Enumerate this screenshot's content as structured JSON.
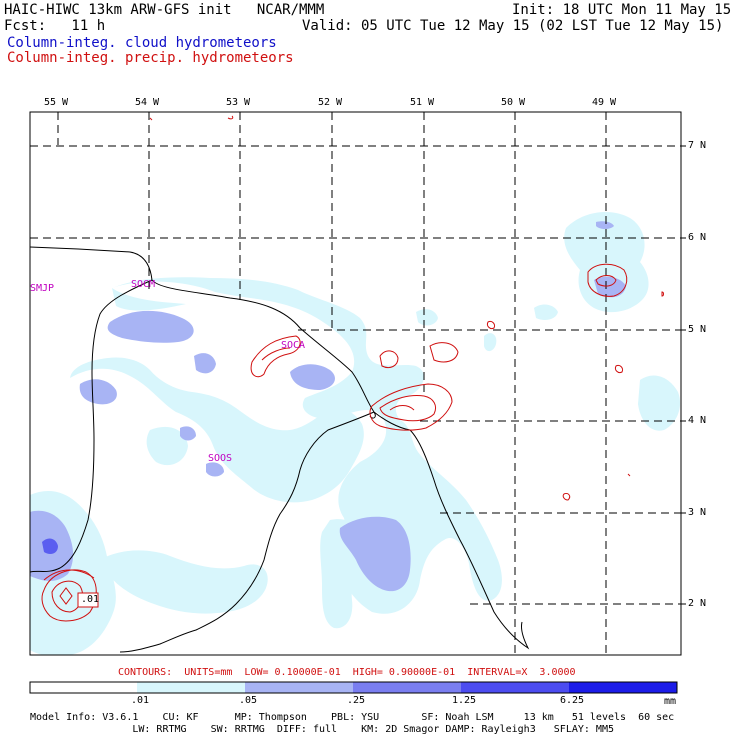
{
  "header": {
    "model_title": "HAIC-HIWC 13km ARW-GFS init   NCAR/MMM",
    "init_time": "Init: 18 UTC Mon 11 May 15",
    "forecast": "Fcst:   11 h",
    "valid_time": "Valid: 05 UTC Tue 12 May 15 (02 LST Tue 12 May 15)",
    "legend_cloud": "Column-integ. cloud hydrometeors",
    "legend_precip": "Column-integ. precip. hydrometeors",
    "cloud_color": "#1010c8",
    "precip_color": "#d01010"
  },
  "map": {
    "longitude_labels": [
      "55 W",
      "54 W",
      "53 W",
      "52 W",
      "51 W",
      "50 W",
      "49 W"
    ],
    "latitude_labels": [
      "7 N",
      "6 N",
      "5 N",
      "4 N",
      "3 N",
      "2 N"
    ],
    "station_labels": [
      "SMJP",
      "SOCM",
      "SOCA",
      "SOOS"
    ],
    "station_color": "#c000c0",
    "contour_value_label": ".01"
  },
  "contours_info": "CONTOURS:  UNITS=mm  LOW= 0.10000E-01  HIGH= 0.90000E-01  INTERVAL=X  3.0000",
  "colorbar": {
    "tick_labels": [
      ".01",
      ".05",
      ".25",
      "1.25",
      "6.25"
    ],
    "unit": "mm",
    "colors": [
      "#ffffff",
      "#d8f6fc",
      "#a8b4f4",
      "#7a7ef0",
      "#4c4cf0",
      "#1c1ce8"
    ]
  },
  "model_info": {
    "line1": "Model Info: V3.6.1    CU: KF      MP: Thompson    PBL: YSU       SF: Noah LSM     13 km   51 levels  60 sec",
    "line2": "                 LW: RRTMG    SW: RRTMG  DIFF: full    KM: 2D Smagor DAMP: Rayleigh3   SFLAY: MM5"
  }
}
